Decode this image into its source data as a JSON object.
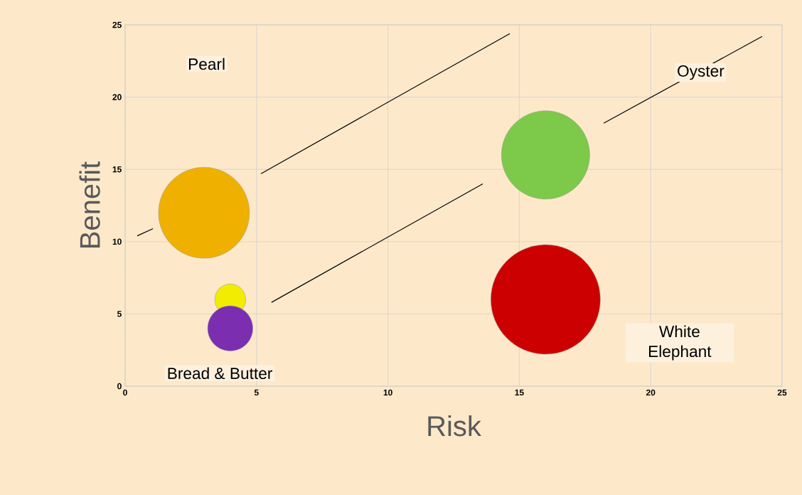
{
  "chart_data": {
    "type": "bubble",
    "xlabel": "Risk",
    "ylabel": "Benefit",
    "xlim": [
      0,
      25
    ],
    "ylim": [
      0,
      25
    ],
    "xticks": [
      0,
      5,
      10,
      15,
      20,
      25
    ],
    "yticks": [
      0,
      5,
      10,
      15,
      20,
      25
    ],
    "grid": true,
    "annotations": [
      "Pearl",
      "Oyster",
      "Bread & Butter",
      "White Elephant"
    ],
    "series": [
      {
        "x": [
          3,
          4,
          4,
          16,
          16
        ],
        "values": [
          12,
          6,
          4,
          16,
          6
        ],
        "sizes": [
          0.69,
          0.08,
          0.17,
          0.65,
          1
        ],
        "colors": [
          "#f0b000",
          "#f2ec00",
          "#7b2fb0",
          "#7dc94a",
          "#cc0000"
        ]
      },
      {
        "type": "line",
        "color": "#000000",
        "x": [
          0.46,
          1.06
        ],
        "values": [
          10.4,
          10.9
        ]
      },
      {
        "type": "line",
        "color": "#000000",
        "x": [
          5.17,
          14.64
        ],
        "values": [
          14.7,
          24.4
        ]
      },
      {
        "type": "line",
        "color": "#000000",
        "x": [
          5.57,
          13.61
        ],
        "values": [
          5.8,
          14.0
        ]
      },
      {
        "type": "line",
        "color": "#000000",
        "x": [
          18.21,
          24.24
        ],
        "values": [
          18.2,
          24.2
        ]
      }
    ]
  }
}
